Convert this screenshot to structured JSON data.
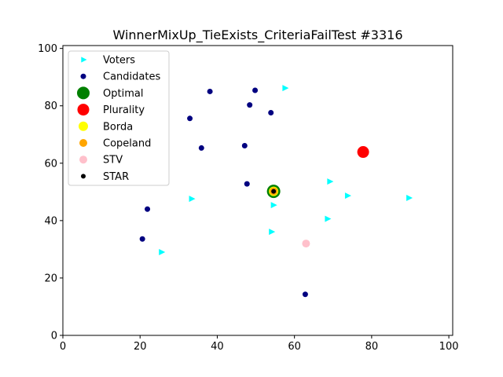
{
  "chart_data": {
    "type": "scatter",
    "title": "WinnerMixUp_TieExists_CriteriaFailTest #3316",
    "xlabel": "",
    "ylabel": "",
    "xlim": [
      0,
      101
    ],
    "ylim": [
      0,
      101
    ],
    "x_ticks": [
      0,
      20,
      40,
      60,
      80,
      100
    ],
    "y_ticks": [
      0,
      20,
      40,
      60,
      80,
      100
    ],
    "grid": false,
    "legend_position": "top-left",
    "series": [
      {
        "name": "Voters",
        "marker": "triangle-right",
        "color": "#00ffff",
        "points": [
          [
            57.5,
            86.2
          ],
          [
            69.1,
            53.6
          ],
          [
            73.7,
            48.7
          ],
          [
            89.6,
            47.9
          ],
          [
            33.3,
            47.6
          ],
          [
            54.5,
            45.4
          ],
          [
            68.5,
            40.6
          ],
          [
            54.0,
            36.1
          ],
          [
            25.5,
            29.0
          ]
        ]
      },
      {
        "name": "Candidates",
        "marker": "circle",
        "color": "#000080",
        "points": [
          [
            38.1,
            85.0
          ],
          [
            49.8,
            85.4
          ],
          [
            48.4,
            80.3
          ],
          [
            53.9,
            77.6
          ],
          [
            32.9,
            75.6
          ],
          [
            47.1,
            66.1
          ],
          [
            35.9,
            65.3
          ],
          [
            47.7,
            52.8
          ],
          [
            54.6,
            50.2
          ],
          [
            21.9,
            44.0
          ],
          [
            20.6,
            33.6
          ],
          [
            62.8,
            14.3
          ]
        ]
      },
      {
        "name": "Optimal",
        "marker": "circle",
        "color": "#008000",
        "points": [
          [
            54.6,
            50.2
          ]
        ]
      },
      {
        "name": "Plurality",
        "marker": "circle",
        "color": "#ff0000",
        "points": [
          [
            77.8,
            63.9
          ]
        ]
      },
      {
        "name": "Borda",
        "marker": "circle",
        "color": "#ffff00",
        "points": [
          [
            54.6,
            50.2
          ]
        ]
      },
      {
        "name": "Copeland",
        "marker": "circle",
        "color": "#ffa500",
        "points": [
          [
            54.6,
            50.2
          ]
        ]
      },
      {
        "name": "STV",
        "marker": "circle",
        "color": "#ffc0cb",
        "points": [
          [
            63.0,
            32.0
          ]
        ]
      },
      {
        "name": "STAR",
        "marker": "circle",
        "color": "#000000",
        "points": [
          [
            54.6,
            50.2
          ]
        ]
      }
    ]
  }
}
